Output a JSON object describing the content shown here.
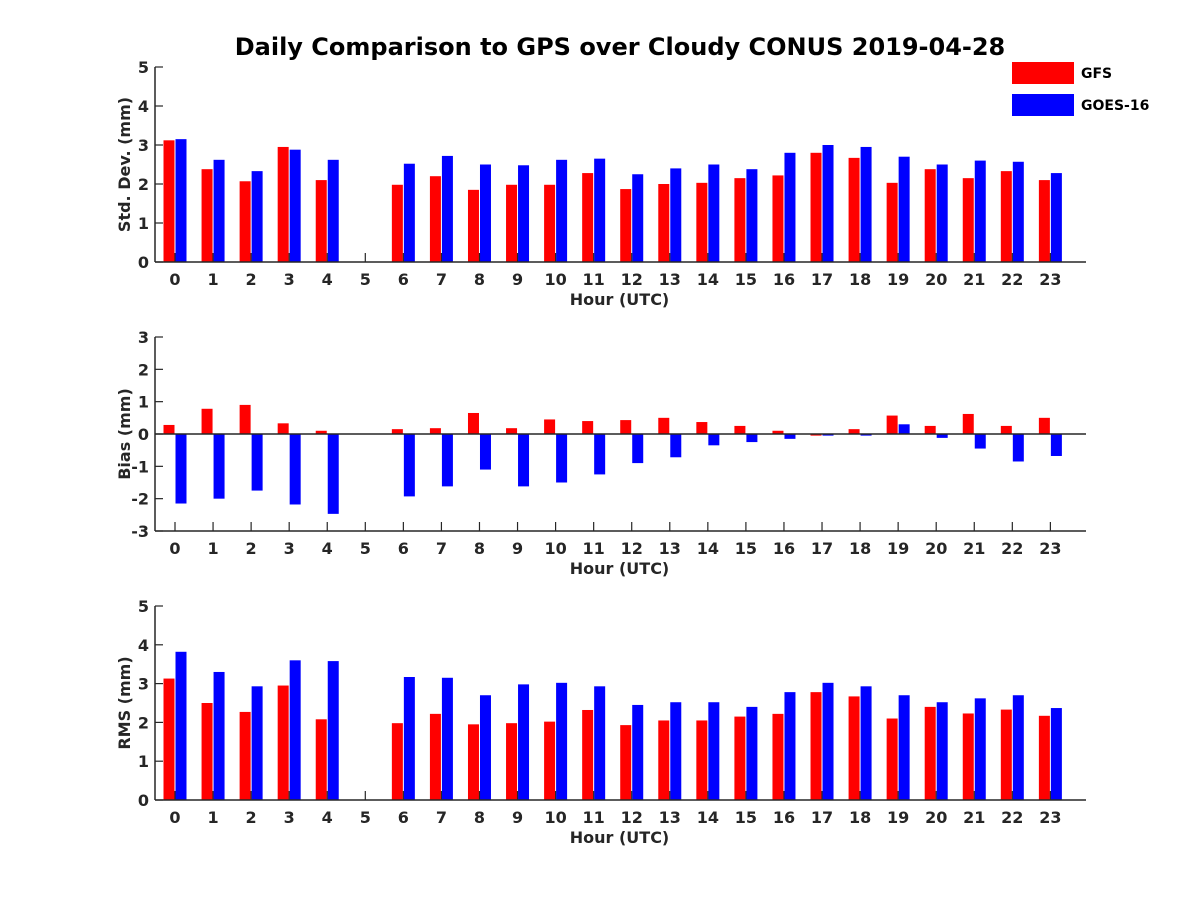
{
  "figure": {
    "title": "Daily Comparison to GPS over Cloudy CONUS 2019-04-28"
  },
  "legend": {
    "placement": "top-right",
    "entries": [
      {
        "label": "GFS",
        "color": "#ff0000"
      },
      {
        "label": "GOES-16",
        "color": "#0000ff"
      }
    ]
  },
  "chart_data": [
    {
      "type": "bar",
      "xlabel": "Hour (UTC)",
      "ylabel": "Std. Dev. (mm)",
      "ylim": [
        0,
        5
      ],
      "yticks": [
        0,
        1,
        2,
        3,
        4,
        5
      ],
      "categories": [
        "0",
        "1",
        "2",
        "3",
        "4",
        "5",
        "6",
        "7",
        "8",
        "9",
        "10",
        "11",
        "12",
        "13",
        "14",
        "15",
        "16",
        "17",
        "18",
        "19",
        "20",
        "21",
        "22",
        "23"
      ],
      "series": [
        {
          "name": "GFS",
          "color": "#ff0000",
          "values": [
            3.12,
            2.38,
            2.07,
            2.95,
            2.1,
            null,
            1.98,
            2.2,
            1.85,
            1.98,
            1.98,
            2.28,
            1.87,
            2.0,
            2.03,
            2.15,
            2.22,
            2.8,
            2.67,
            2.03,
            2.38,
            2.15,
            2.33,
            2.1
          ]
        },
        {
          "name": "GOES-16",
          "color": "#0000ff",
          "values": [
            3.15,
            2.62,
            2.33,
            2.88,
            2.62,
            null,
            2.52,
            2.72,
            2.5,
            2.48,
            2.62,
            2.65,
            2.25,
            2.4,
            2.5,
            2.38,
            2.8,
            3.0,
            2.95,
            2.7,
            2.5,
            2.6,
            2.57,
            2.28
          ]
        }
      ]
    },
    {
      "type": "bar",
      "xlabel": "Hour (UTC)",
      "ylabel": "Bias (mm)",
      "ylim": [
        -3,
        3
      ],
      "yticks": [
        -3,
        -2,
        -1,
        0,
        1,
        2,
        3
      ],
      "categories": [
        "0",
        "1",
        "2",
        "3",
        "4",
        "5",
        "6",
        "7",
        "8",
        "9",
        "10",
        "11",
        "12",
        "13",
        "14",
        "15",
        "16",
        "17",
        "18",
        "19",
        "20",
        "21",
        "22",
        "23"
      ],
      "series": [
        {
          "name": "GFS",
          "color": "#ff0000",
          "values": [
            0.28,
            0.78,
            0.9,
            0.33,
            0.1,
            null,
            0.15,
            0.18,
            0.65,
            0.18,
            0.45,
            0.4,
            0.43,
            0.5,
            0.37,
            0.25,
            0.1,
            -0.05,
            0.15,
            0.57,
            0.25,
            0.62,
            0.25,
            0.5
          ]
        },
        {
          "name": "GOES-16",
          "color": "#0000ff",
          "values": [
            -2.15,
            -2.0,
            -1.75,
            -2.18,
            -2.47,
            null,
            -1.93,
            -1.62,
            -1.1,
            -1.62,
            -1.5,
            -1.25,
            -0.9,
            -0.72,
            -0.35,
            -0.25,
            -0.15,
            -0.05,
            -0.05,
            0.3,
            -0.12,
            -0.45,
            -0.85,
            -0.68
          ]
        }
      ]
    },
    {
      "type": "bar",
      "xlabel": "Hour (UTC)",
      "ylabel": "RMS (mm)",
      "ylim": [
        0,
        5
      ],
      "yticks": [
        0,
        1,
        2,
        3,
        4,
        5
      ],
      "categories": [
        "0",
        "1",
        "2",
        "3",
        "4",
        "5",
        "6",
        "7",
        "8",
        "9",
        "10",
        "11",
        "12",
        "13",
        "14",
        "15",
        "16",
        "17",
        "18",
        "19",
        "20",
        "21",
        "22",
        "23"
      ],
      "series": [
        {
          "name": "GFS",
          "color": "#ff0000",
          "values": [
            3.13,
            2.5,
            2.27,
            2.95,
            2.08,
            null,
            1.98,
            2.22,
            1.95,
            1.98,
            2.02,
            2.32,
            1.93,
            2.05,
            2.05,
            2.15,
            2.22,
            2.78,
            2.67,
            2.1,
            2.4,
            2.23,
            2.33,
            2.17
          ]
        },
        {
          "name": "GOES-16",
          "color": "#0000ff",
          "values": [
            3.82,
            3.3,
            2.93,
            3.6,
            3.58,
            null,
            3.17,
            3.15,
            2.7,
            2.98,
            3.02,
            2.93,
            2.45,
            2.52,
            2.52,
            2.4,
            2.78,
            3.02,
            2.93,
            2.7,
            2.52,
            2.62,
            2.7,
            2.37
          ]
        }
      ]
    }
  ]
}
